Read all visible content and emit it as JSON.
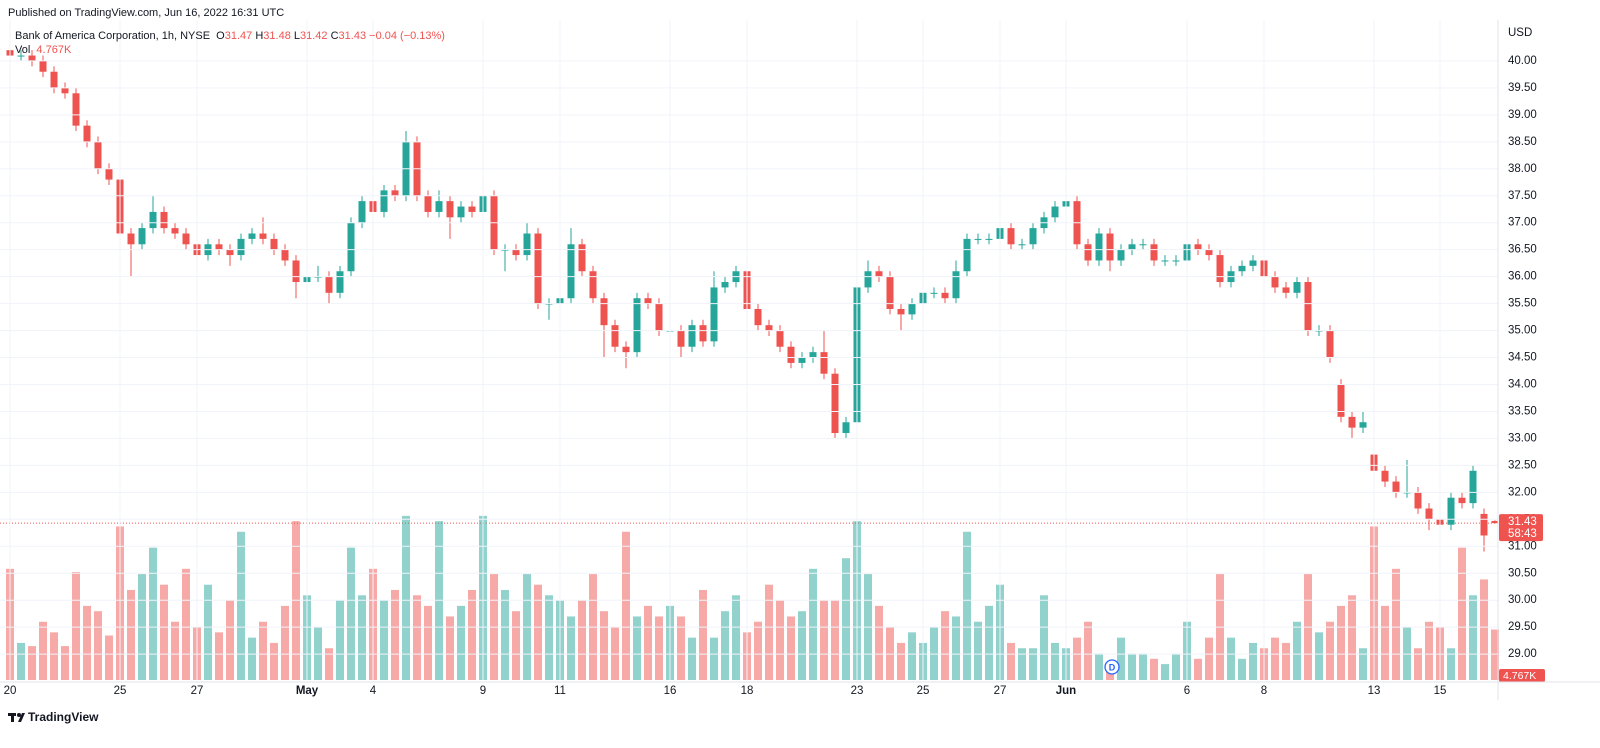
{
  "header": {
    "published": "Published on TradingView.com, Jun 16, 2022 16:31 UTC",
    "symbol": "Bank of America Corporation, 1h, NYSE",
    "ohlc_letters": [
      "O",
      "H",
      "L",
      "C"
    ],
    "change": "−0.04 (−0.13%)",
    "volume_label": "Vol"
  },
  "footer": {
    "brand": "TradingView"
  },
  "countdown": "58:43",
  "dividend_marker": "D",
  "chart_data": {
    "type": "candlestick",
    "currency": "USD",
    "colors": {
      "up": "#26a69a",
      "down": "#ef5350"
    },
    "categories": [
      "20",
      null,
      null,
      null,
      null,
      null,
      null,
      null,
      null,
      null,
      "25",
      null,
      null,
      null,
      null,
      null,
      null,
      "27",
      null,
      null,
      null,
      null,
      null,
      null,
      null,
      null,
      null,
      "May",
      null,
      null,
      null,
      null,
      null,
      "4",
      null,
      null,
      null,
      null,
      null,
      null,
      null,
      null,
      null,
      "9",
      null,
      null,
      null,
      null,
      null,
      null,
      "11",
      null,
      null,
      null,
      null,
      null,
      null,
      null,
      null,
      null,
      "16",
      null,
      null,
      null,
      null,
      null,
      null,
      "18",
      null,
      null,
      null,
      null,
      null,
      null,
      null,
      null,
      null,
      "23",
      null,
      null,
      null,
      null,
      null,
      "25",
      null,
      null,
      null,
      null,
      null,
      null,
      "27",
      null,
      null,
      null,
      null,
      null,
      "Jun",
      null,
      null,
      null,
      null,
      null,
      null,
      null,
      null,
      null,
      null,
      "6",
      null,
      null,
      null,
      null,
      null,
      null,
      "8",
      null,
      null,
      null,
      null,
      null,
      null,
      null,
      null,
      null,
      "13",
      null,
      null,
      null,
      null,
      null,
      "15",
      null,
      null,
      null,
      null,
      null
    ],
    "open": [
      40.2,
      40.1,
      40.1,
      40.0,
      39.8,
      39.5,
      39.4,
      38.8,
      38.5,
      38.0,
      37.8,
      36.8,
      36.6,
      36.9,
      37.2,
      36.9,
      36.8,
      36.6,
      36.4,
      36.6,
      36.5,
      36.4,
      36.7,
      36.8,
      36.7,
      36.5,
      36.3,
      35.9,
      36.0,
      36.0,
      35.7,
      36.1,
      37.0,
      37.4,
      37.2,
      37.6,
      37.5,
      38.5,
      37.5,
      37.2,
      37.4,
      37.1,
      37.3,
      37.2,
      37.5,
      36.5,
      36.5,
      36.4,
      36.8,
      35.5,
      35.5,
      35.6,
      36.6,
      36.1,
      35.6,
      35.1,
      34.7,
      34.6,
      35.6,
      35.5,
      35.0,
      35.0,
      34.7,
      35.1,
      34.8,
      35.8,
      35.9,
      36.1,
      35.4,
      35.1,
      35.0,
      34.7,
      34.4,
      34.5,
      34.6,
      34.2,
      33.1,
      33.3,
      35.8,
      36.1,
      36.0,
      35.4,
      35.3,
      35.5,
      35.7,
      35.7,
      35.6,
      36.1,
      36.7,
      36.7,
      36.7,
      36.9,
      36.6,
      36.6,
      36.9,
      37.1,
      37.3,
      37.4,
      36.6,
      36.3,
      36.8,
      36.3,
      36.5,
      36.6,
      36.6,
      36.3,
      36.3,
      36.3,
      36.6,
      36.5,
      36.4,
      35.9,
      36.1,
      36.2,
      36.3,
      36.0,
      35.8,
      35.7,
      35.9,
      35.0,
      35.0,
      34.0,
      33.4,
      33.2,
      32.7,
      32.4,
      32.2,
      32.0,
      32.0,
      31.7,
      31.5,
      31.4,
      31.9,
      31.8,
      31.6,
      31.47
    ],
    "high": [
      40.3,
      40.2,
      40.2,
      40.1,
      39.9,
      39.6,
      39.5,
      38.9,
      38.6,
      38.1,
      37.9,
      36.9,
      37.0,
      37.5,
      37.3,
      37.0,
      36.9,
      36.7,
      36.7,
      36.7,
      36.6,
      36.8,
      36.9,
      37.1,
      36.8,
      36.6,
      36.4,
      36.1,
      36.2,
      36.1,
      36.2,
      37.1,
      37.5,
      37.9,
      37.7,
      37.7,
      38.7,
      38.6,
      37.6,
      37.6,
      37.5,
      37.4,
      37.4,
      37.6,
      37.6,
      36.6,
      36.6,
      37.0,
      36.9,
      35.6,
      35.7,
      36.9,
      36.7,
      36.2,
      35.7,
      35.2,
      34.8,
      35.7,
      35.7,
      35.6,
      35.1,
      35.1,
      35.2,
      35.2,
      36.1,
      36.0,
      36.2,
      36.2,
      35.5,
      35.2,
      35.1,
      34.8,
      34.6,
      34.7,
      35.0,
      34.3,
      33.4,
      35.9,
      36.3,
      36.2,
      36.1,
      35.5,
      35.6,
      35.8,
      35.8,
      35.8,
      36.3,
      36.8,
      36.8,
      36.8,
      37.0,
      37.0,
      36.7,
      37.0,
      37.2,
      37.4,
      37.5,
      37.5,
      36.7,
      36.9,
      36.9,
      36.6,
      36.7,
      36.7,
      36.7,
      36.4,
      36.4,
      37.2,
      36.7,
      36.6,
      36.5,
      36.2,
      36.3,
      36.4,
      36.4,
      36.1,
      35.9,
      36.0,
      36.0,
      35.1,
      35.1,
      34.1,
      33.5,
      33.5,
      32.8,
      32.5,
      32.3,
      32.6,
      32.1,
      31.8,
      31.6,
      32.0,
      32.0,
      32.5,
      31.7,
      31.48
    ],
    "low": [
      40.0,
      40.0,
      39.9,
      39.7,
      39.4,
      39.3,
      38.7,
      38.4,
      37.9,
      37.7,
      36.7,
      36.0,
      36.5,
      36.8,
      36.8,
      36.7,
      36.5,
      36.2,
      36.3,
      36.4,
      36.2,
      36.3,
      36.6,
      36.6,
      36.4,
      36.2,
      35.6,
      35.8,
      35.9,
      35.5,
      35.6,
      36.0,
      36.9,
      37.1,
      37.1,
      37.4,
      37.4,
      37.4,
      37.1,
      37.1,
      36.7,
      37.0,
      37.1,
      37.1,
      36.4,
      36.1,
      36.3,
      36.3,
      35.4,
      35.2,
      35.4,
      35.5,
      36.0,
      35.5,
      34.5,
      34.6,
      34.3,
      34.5,
      35.4,
      34.9,
      34.8,
      34.5,
      34.6,
      34.7,
      34.7,
      35.7,
      35.8,
      35.3,
      35.0,
      34.9,
      34.6,
      34.3,
      34.3,
      34.4,
      34.1,
      33.0,
      33.0,
      33.2,
      35.7,
      35.9,
      35.3,
      35.0,
      35.2,
      35.4,
      35.6,
      35.5,
      35.5,
      36.0,
      36.6,
      36.6,
      36.6,
      36.5,
      36.5,
      36.5,
      36.8,
      37.0,
      37.2,
      36.5,
      36.2,
      36.2,
      36.1,
      36.2,
      36.4,
      36.5,
      36.2,
      36.2,
      36.2,
      36.2,
      36.4,
      36.3,
      35.8,
      35.8,
      36.0,
      36.1,
      35.9,
      35.7,
      35.6,
      35.6,
      34.9,
      34.9,
      34.4,
      33.3,
      33.0,
      33.1,
      32.3,
      32.1,
      31.9,
      31.9,
      31.6,
      31.3,
      31.3,
      31.3,
      31.7,
      31.7,
      30.9,
      31.42
    ],
    "close": [
      40.1,
      40.1,
      40.0,
      39.8,
      39.5,
      39.4,
      38.8,
      38.5,
      38.0,
      37.8,
      36.8,
      36.6,
      36.9,
      37.2,
      36.9,
      36.8,
      36.6,
      36.4,
      36.6,
      36.5,
      36.4,
      36.7,
      36.8,
      36.7,
      36.5,
      36.3,
      35.9,
      36.0,
      36.0,
      35.7,
      36.1,
      37.0,
      37.4,
      37.2,
      37.6,
      37.5,
      38.5,
      37.5,
      37.2,
      37.4,
      37.1,
      37.3,
      37.2,
      37.5,
      36.5,
      36.5,
      36.4,
      36.8,
      35.5,
      35.5,
      35.6,
      36.6,
      36.1,
      35.6,
      35.1,
      34.7,
      34.6,
      35.6,
      35.5,
      35.0,
      35.0,
      34.7,
      35.1,
      34.8,
      35.8,
      35.9,
      36.1,
      35.4,
      35.1,
      35.0,
      34.7,
      34.4,
      34.5,
      34.6,
      34.2,
      33.1,
      33.3,
      35.8,
      36.1,
      36.0,
      35.4,
      35.3,
      35.5,
      35.7,
      35.7,
      35.6,
      36.1,
      36.7,
      36.7,
      36.7,
      36.9,
      36.6,
      36.6,
      36.9,
      37.1,
      37.3,
      37.4,
      36.6,
      36.3,
      36.8,
      36.3,
      36.5,
      36.6,
      36.6,
      36.3,
      36.3,
      36.3,
      36.6,
      36.5,
      36.4,
      35.9,
      36.1,
      36.2,
      36.3,
      36.0,
      35.8,
      35.7,
      35.9,
      35.0,
      35.0,
      34.5,
      33.4,
      33.2,
      33.3,
      32.4,
      32.2,
      32.0,
      32.0,
      31.7,
      31.5,
      31.4,
      31.9,
      31.8,
      32.4,
      31.2,
      31.43
    ],
    "volume": [
      10.5,
      3.5,
      3.2,
      5.5,
      4.5,
      3.2,
      10.2,
      7.0,
      6.5,
      4.2,
      14.5,
      8.5,
      10.0,
      12.5,
      9.0,
      5.5,
      10.5,
      5.0,
      9.0,
      4.5,
      7.5,
      14.0,
      4.0,
      5.5,
      3.5,
      7.0,
      15.0,
      8.0,
      5.0,
      3.0,
      7.5,
      12.5,
      8.0,
      10.5,
      7.5,
      8.5,
      15.5,
      8.0,
      7.0,
      15.0,
      6.0,
      7.0,
      8.5,
      15.5,
      10.0,
      8.5,
      6.5,
      10.0,
      9.0,
      8.0,
      7.5,
      6.0,
      7.5,
      10.0,
      6.5,
      5.0,
      14.0,
      6.0,
      7.0,
      6.0,
      7.0,
      6.0,
      4.0,
      8.5,
      4.0,
      6.5,
      8.0,
      4.5,
      5.5,
      9.0,
      7.5,
      6.0,
      6.5,
      10.5,
      7.5,
      7.5,
      11.5,
      15.0,
      10.0,
      7.0,
      5.0,
      3.5,
      4.5,
      3.5,
      5.0,
      6.5,
      6.0,
      14.0,
      5.5,
      7.0,
      9.0,
      3.5,
      3.0,
      3.0,
      8.0,
      3.5,
      3.0,
      4.0,
      5.5,
      2.5,
      1.5,
      4.0,
      2.5,
      2.5,
      2.0,
      1.5,
      2.5,
      5.5,
      2.0,
      4.0,
      10.0,
      4.0,
      2.0,
      3.5,
      3.0,
      4.0,
      3.5,
      5.5,
      10.0,
      4.5,
      5.5,
      7.0,
      8.0,
      3.0,
      14.5,
      7.0,
      10.5,
      5.0,
      3.0,
      5.5,
      5.0,
      3.0,
      12.5,
      8.0,
      9.5,
      4.767
    ],
    "last_volume_label": "4.767K",
    "ylim": [
      28.52,
      41.13
    ],
    "vlim": [
      0,
      17
    ],
    "yticks": [
      {
        "value": 29,
        "label": "29.00"
      },
      {
        "value": 29.5,
        "label": "29.50"
      },
      {
        "value": 30,
        "label": "30.00"
      },
      {
        "value": 30.5,
        "label": "30.50"
      },
      {
        "value": 31,
        "label": "31.00"
      },
      {
        "value": 31.5,
        "label": "31.50"
      },
      {
        "value": 32,
        "label": "32.00"
      },
      {
        "value": 32.5,
        "label": "32.50"
      },
      {
        "value": 33,
        "label": "33.00"
      },
      {
        "value": 33.5,
        "label": "33.50"
      },
      {
        "value": 34,
        "label": "34.00"
      },
      {
        "value": 34.5,
        "label": "34.50"
      },
      {
        "value": 35,
        "label": "35.00"
      },
      {
        "value": 35.5,
        "label": "35.50"
      },
      {
        "value": 36,
        "label": "36.00"
      },
      {
        "value": 36.5,
        "label": "36.50"
      },
      {
        "value": 37,
        "label": "37.00"
      },
      {
        "value": 37.5,
        "label": "37.50"
      },
      {
        "value": 38,
        "label": "38.00"
      },
      {
        "value": 38.5,
        "label": "38.50"
      },
      {
        "value": 39,
        "label": "39.00"
      },
      {
        "value": 39.5,
        "label": "39.50"
      },
      {
        "value": 40,
        "label": "40.00"
      }
    ],
    "grid": true
  }
}
